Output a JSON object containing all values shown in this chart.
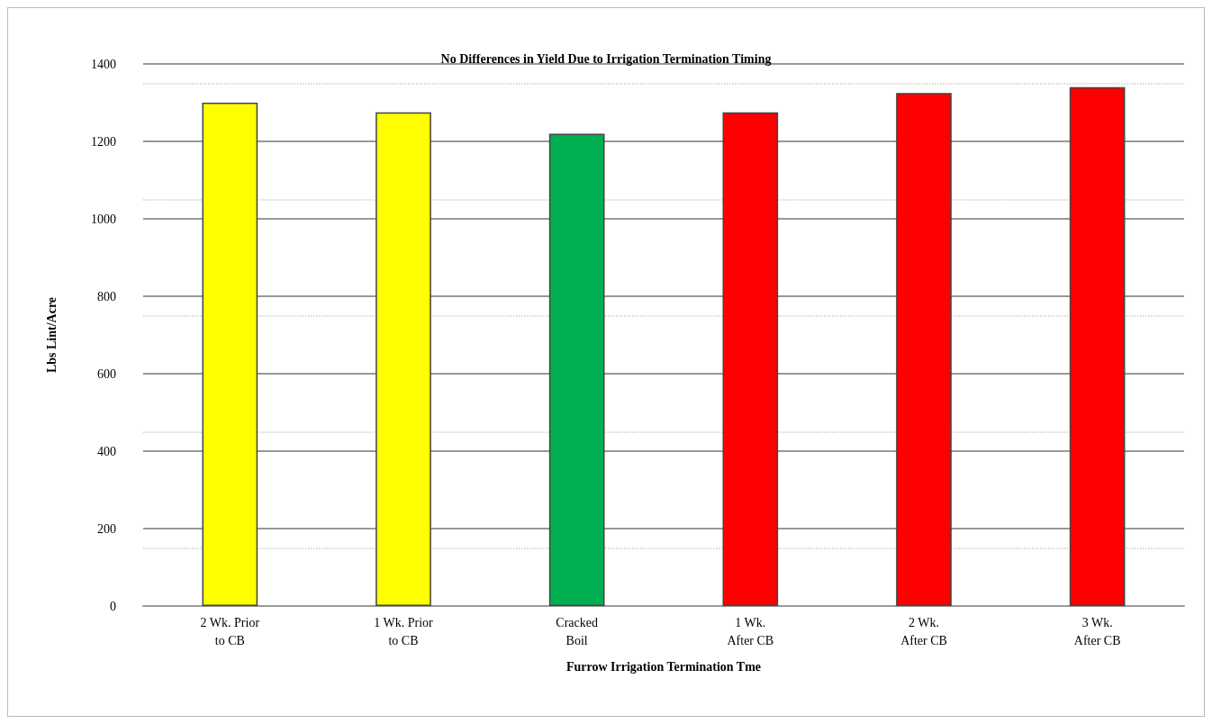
{
  "chart_data": {
    "type": "bar",
    "title": "No Differences in Yield Due to Irrigation Termination Timing",
    "xlabel": "Furrow Irrigation Termination Tme",
    "ylabel": "Lbs Lint/Acre",
    "categories": [
      "2 Wk. Prior\nto CB",
      "1 Wk. Prior\nto CB",
      "Cracked\nBoil",
      "1 Wk.\nAfter CB",
      "2 Wk.\nAfter CB",
      "3 Wk.\nAfter CB"
    ],
    "values": [
      1300,
      1275,
      1220,
      1275,
      1325,
      1340
    ],
    "colors": [
      "#ffff00",
      "#ffff00",
      "#00b050",
      "#ff0000",
      "#ff0000",
      "#ff0000"
    ],
    "ylim": [
      0,
      1400
    ],
    "yticks": [
      0,
      200,
      400,
      600,
      800,
      1000,
      1200,
      1400
    ],
    "grid": "y"
  }
}
